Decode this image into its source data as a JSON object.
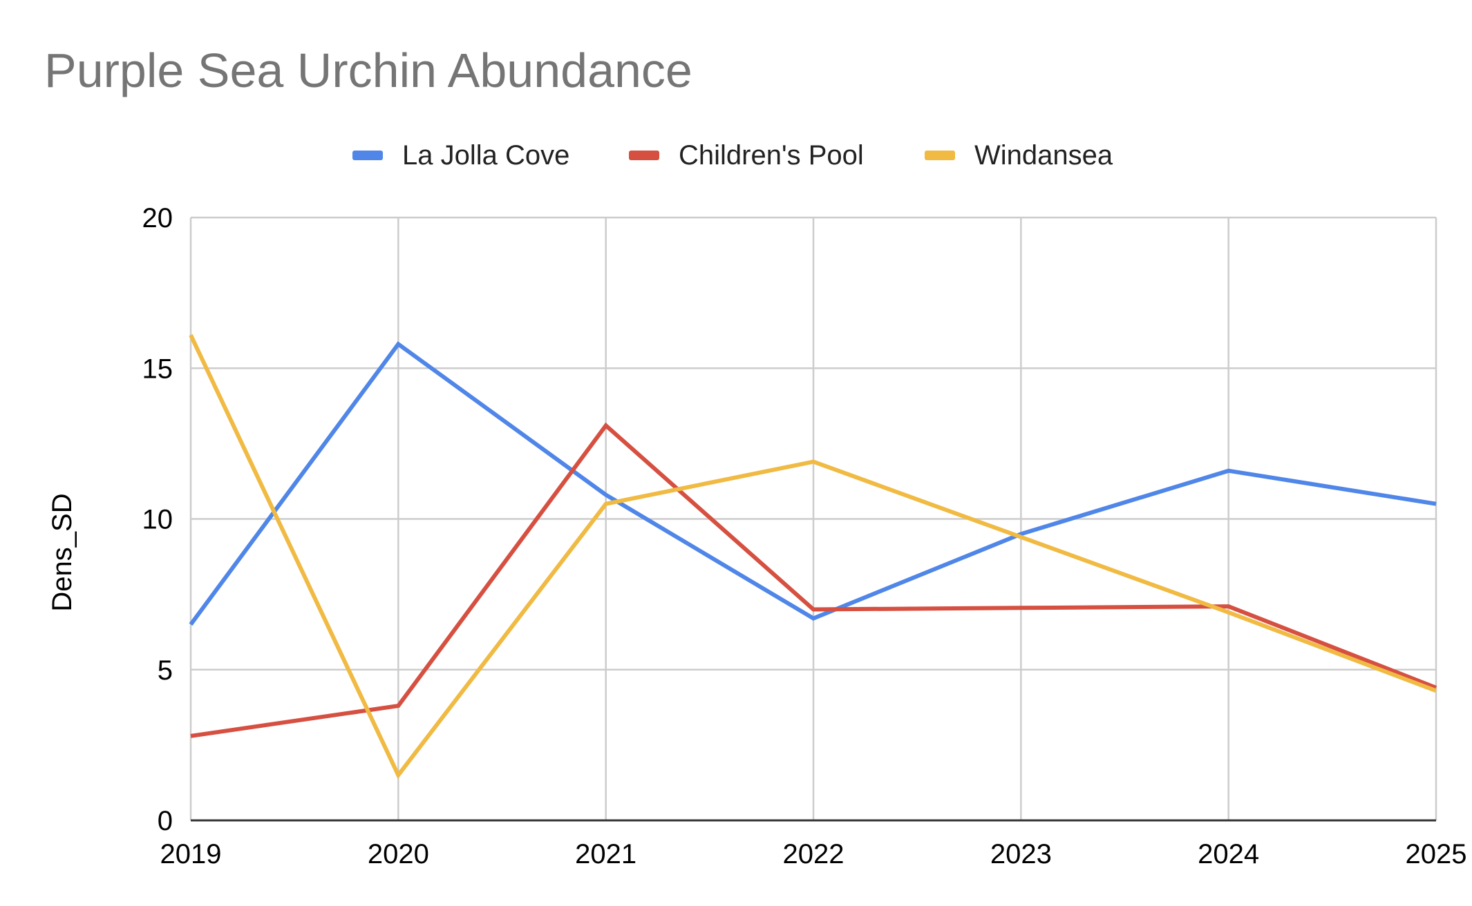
{
  "chart_data": {
    "type": "line",
    "title": "Purple Sea Urchin Abundance",
    "xlabel": "",
    "ylabel": "Dens_SD",
    "x": [
      "2019",
      "2020",
      "2021",
      "2022",
      "2023",
      "2024",
      "2025"
    ],
    "ylim": [
      0,
      20
    ],
    "yticks": [
      0,
      5,
      10,
      15,
      20
    ],
    "grid": true,
    "legend_position": "top",
    "series": [
      {
        "name": "La Jolla Cove",
        "color": "#4F86E8",
        "values": [
          6.5,
          15.8,
          10.8,
          6.7,
          9.5,
          11.6,
          10.5
        ]
      },
      {
        "name": "Children's Pool",
        "color": "#D65041",
        "values": [
          2.8,
          3.8,
          13.1,
          7.0,
          7.05,
          7.1,
          4.4
        ]
      },
      {
        "name": "Windansea",
        "color": "#F0BA43",
        "values": [
          16.1,
          1.5,
          10.5,
          11.9,
          9.4,
          6.9,
          4.3
        ]
      }
    ]
  }
}
